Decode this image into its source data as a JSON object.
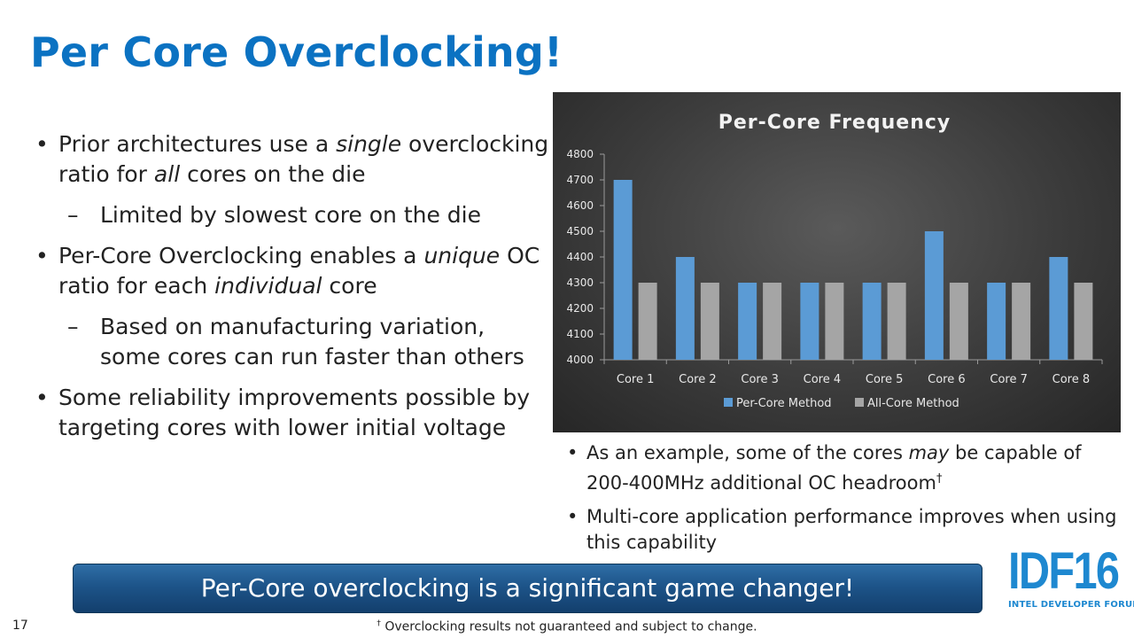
{
  "slide": {
    "title": "Per Core Overclocking!",
    "page_number": "17",
    "banner": "Per-Core overclocking is a significant game changer!",
    "footnote_mark": "†",
    "footnote": " Overclocking results not guaranteed and subject to change."
  },
  "left_bullets": {
    "b1": {
      "t1": "Prior architectures use a ",
      "em1": "single",
      "t2": " overclocking ratio for ",
      "em2": "all",
      "t3": " cores on the die"
    },
    "b1_sub": "Limited by slowest core on the die",
    "b2": {
      "t1": "Per-Core Overclocking enables a ",
      "em1": "unique",
      "t2": " OC ratio for each ",
      "em2": "individual",
      "t3": " core"
    },
    "b2_sub": "Based on manufacturing variation, some cores can run faster than others",
    "b3": "Some reliability improvements possible by targeting cores with lower initial voltage"
  },
  "right_bullets": {
    "r1": {
      "t1": "As an example, some of the cores ",
      "em": "may",
      "t2": " be capable of 200-400MHz additional OC headroom",
      "mark": "†"
    },
    "r2": "Multi-core application performance improves when using this capability"
  },
  "logo": {
    "big": "IDF16",
    "small": "INTEL DEVELOPER FORUM"
  },
  "colors": {
    "title": "#0b72c2",
    "series_per_core": "#5b9bd5",
    "series_all_core": "#a5a5a5",
    "banner": "#1d5489"
  },
  "chart_data": {
    "type": "bar",
    "title": "Per-Core Frequency",
    "xlabel": "",
    "ylabel": "",
    "categories": [
      "Core 1",
      "Core 2",
      "Core 3",
      "Core 4",
      "Core 5",
      "Core 6",
      "Core 7",
      "Core 8"
    ],
    "series": [
      {
        "name": "Per-Core Method",
        "values": [
          4700,
          4400,
          4300,
          4300,
          4300,
          4500,
          4300,
          4400
        ]
      },
      {
        "name": "All-Core Method",
        "values": [
          4300,
          4300,
          4300,
          4300,
          4300,
          4300,
          4300,
          4300
        ]
      }
    ],
    "ylim": [
      4000,
      4800
    ],
    "yticks": [
      4000,
      4100,
      4200,
      4300,
      4400,
      4500,
      4600,
      4700,
      4800
    ],
    "grid": false,
    "legend": "bottom"
  }
}
